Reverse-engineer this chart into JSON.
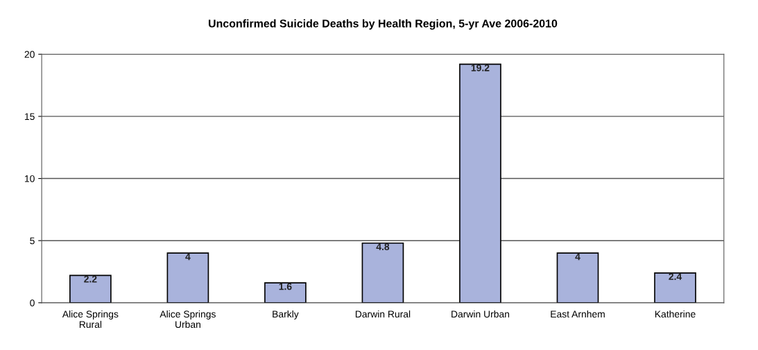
{
  "chart_data": {
    "type": "bar",
    "title": "Unconfirmed Suicide Deaths by Health Region, 5-yr Ave 2006-2010",
    "categories": [
      "Alice Springs\nRural",
      "Alice Springs\nUrban",
      "Barkly",
      "Darwin Rural",
      "Darwin Urban",
      "East Arnhem",
      "Katherine"
    ],
    "values": [
      2.2,
      4,
      1.6,
      4.8,
      19.2,
      4,
      2.4
    ],
    "color": "#a9b3dc",
    "ylim": [
      0,
      20
    ],
    "yticks": [
      0,
      5,
      10,
      15,
      20
    ],
    "grid": "y",
    "data_labels": true
  }
}
